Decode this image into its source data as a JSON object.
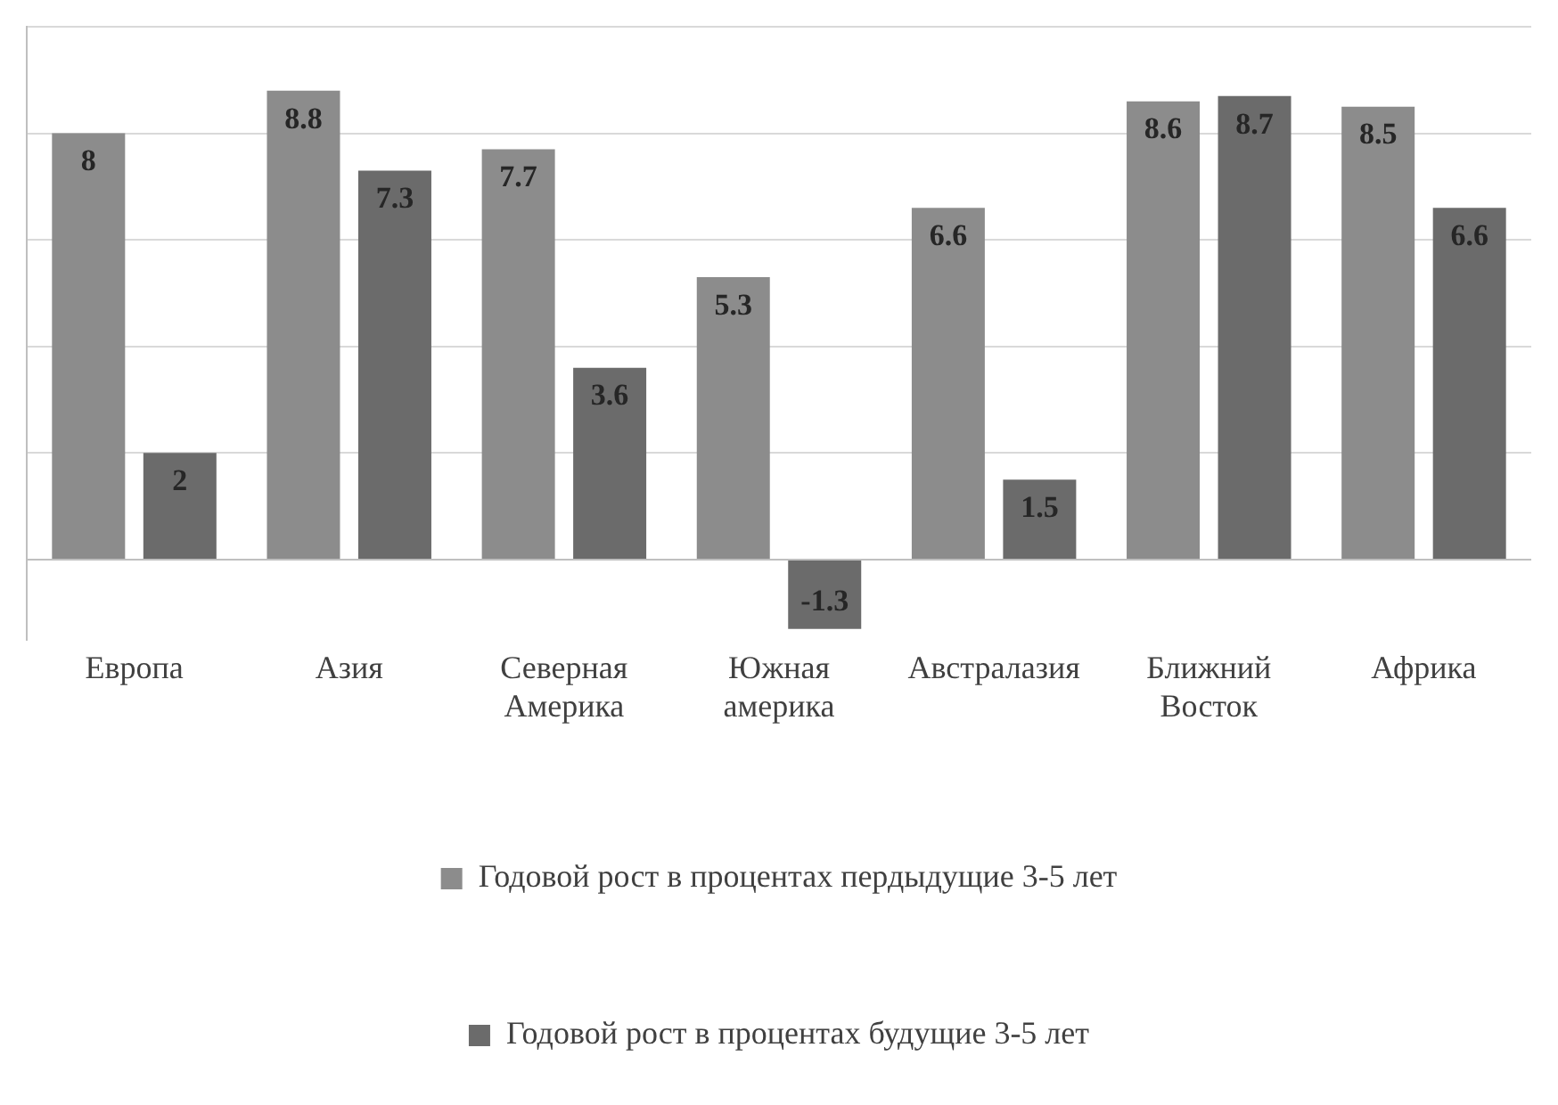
{
  "chart_data": {
    "type": "bar",
    "categories": [
      "Европа",
      "Азия",
      "Северная Америка",
      "Южная америка",
      "Австралазия",
      "Ближний Восток",
      "Африка"
    ],
    "series": [
      {
        "name": "Годовой рост в процентах пердыдущие 3-5 лет",
        "color": "#8c8c8c",
        "values": [
          8,
          8.8,
          7.7,
          5.3,
          6.6,
          8.6,
          8.5
        ]
      },
      {
        "name": "Годовой рост в процентах будущие 3-5 лет",
        "color": "#6b6b6b",
        "values": [
          2,
          7.3,
          3.6,
          -1.3,
          1.5,
          8.7,
          6.6
        ]
      }
    ],
    "ylim": [
      -1.5,
      10
    ],
    "yticks": [
      {
        "value": 0,
        "label": null
      },
      {
        "value": 2,
        "label": null
      },
      {
        "value": 4,
        "label": null
      },
      {
        "value": 6,
        "label": null
      },
      {
        "value": 8,
        "label": null
      },
      {
        "value": 10,
        "label": null
      }
    ],
    "grid": "y",
    "legend": "bottom",
    "data_labels": true,
    "tick_labels": "x"
  }
}
